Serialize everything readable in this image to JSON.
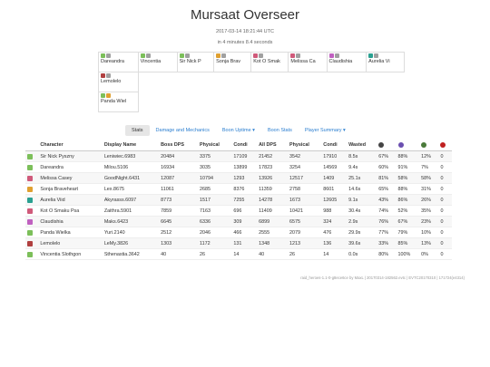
{
  "title": "Mursaat Overseer",
  "timestamp": "2017-03-14 18:21:44 UTC",
  "duration": "in 4 minutes 8.4 seconds",
  "squad": [
    [
      {
        "name": "Dareandra",
        "c1": "#7cbf5a",
        "c2": "#a0a0a0"
      },
      {
        "name": "Vincentia",
        "c1": "#7cbf5a",
        "c2": "#a0a0a0"
      },
      {
        "name": "Sir Nick P",
        "c1": "#7cbf5a",
        "c2": "#a0a0a0"
      },
      {
        "name": "Sonja Brav",
        "c1": "#e0a030",
        "c2": "#a0a0a0"
      },
      {
        "name": "Kot O Smak",
        "c1": "#d05a7a",
        "c2": "#a0a0a0"
      },
      {
        "name": "Melissa Ca",
        "c1": "#d05a7a",
        "c2": "#a0a0a0"
      },
      {
        "name": "Claudishia",
        "c1": "#c060c0",
        "c2": "#a0a0a0"
      },
      {
        "name": "Aurelia Vi",
        "c1": "#2aa090",
        "c2": "#a0a0a0"
      }
    ],
    [
      {
        "name": "Lemolelo",
        "c1": "#b04040",
        "c2": "#a0a0a0"
      }
    ],
    [
      {
        "name": "Panda Wiel",
        "c1": "#7cbf5a",
        "c2": "#e0a030"
      }
    ]
  ],
  "tabs": [
    "Stats",
    "Damage and Mechanics",
    "Boon Uptime ▾",
    "Boon Stats",
    "Player Summary ▾"
  ],
  "columns": [
    "Character",
    "Display Name",
    "Boss DPS",
    "Physical",
    "Condi",
    "All DPS",
    "Physical",
    "Condi",
    "Wasted"
  ],
  "col_icons": [
    {
      "name": "clock-icon",
      "color": "#444"
    },
    {
      "name": "swap-icon",
      "color": "#6a4fb0"
    },
    {
      "name": "down-icon",
      "color": "#4a7a3a"
    },
    {
      "name": "heart-icon",
      "color": "#c02020"
    }
  ],
  "rows": [
    {
      "color": "#7cbf5a",
      "cells": [
        "Sir Nick Pyszny",
        "Leniwiec.6983",
        "20484",
        "3375",
        "17109",
        "21452",
        "3542",
        "17910",
        "8.5s",
        "67%",
        "88%",
        "12%",
        "0"
      ]
    },
    {
      "color": "#7cbf5a",
      "cells": [
        "Dareandra",
        "Milou.5106",
        "16934",
        "3035",
        "13899",
        "17823",
        "3254",
        "14569",
        "9.4s",
        "60%",
        "91%",
        "7%",
        "0"
      ]
    },
    {
      "color": "#d05a7a",
      "cells": [
        "Melissa Casey",
        "GoodNight.6431",
        "12087",
        "10794",
        "1293",
        "13926",
        "12517",
        "1409",
        "25.1s",
        "81%",
        "58%",
        "58%",
        "0"
      ]
    },
    {
      "color": "#e0a030",
      "cells": [
        "Sonja Braveheart",
        "Lex.8675",
        "11061",
        "2685",
        "8376",
        "11359",
        "2758",
        "8601",
        "14.6s",
        "65%",
        "88%",
        "31%",
        "0"
      ]
    },
    {
      "color": "#2aa090",
      "cells": [
        "Aurelia Viid",
        "Akyrasss.6097",
        "8773",
        "1517",
        "7255",
        "14278",
        "1673",
        "12605",
        "9.1s",
        "43%",
        "86%",
        "26%",
        "0"
      ]
    },
    {
      "color": "#d05a7a",
      "cells": [
        "Kot O Smaku Psa",
        "Zaithra.5901",
        "7859",
        "7163",
        "696",
        "11409",
        "10421",
        "988",
        "30.4s",
        "74%",
        "52%",
        "35%",
        "0"
      ]
    },
    {
      "color": "#c060c0",
      "cells": [
        "Claudishia",
        "Maks.6423",
        "6645",
        "6336",
        "309",
        "6899",
        "6575",
        "324",
        "2.9s",
        "76%",
        "67%",
        "23%",
        "0"
      ]
    },
    {
      "color": "#7cbf5a",
      "cells": [
        "Panda Wielka",
        "Yuri.2140",
        "2512",
        "2046",
        "466",
        "2555",
        "2079",
        "476",
        "29.9s",
        "77%",
        "79%",
        "10%",
        "0"
      ]
    },
    {
      "color": "#b04040",
      "cells": [
        "Lemolelo",
        "LeMy.3826",
        "1303",
        "1172",
        "131",
        "1348",
        "1213",
        "136",
        "39.6s",
        "33%",
        "85%",
        "13%",
        "0"
      ]
    },
    {
      "color": "#7cbf5a",
      "cells": [
        "Vincentia Slothgon",
        "Sthenastia.3642",
        "40",
        "26",
        "14",
        "40",
        "26",
        "14",
        "0.0s",
        "80%",
        "100%",
        "0%",
        "0"
      ]
    }
  ],
  "footer": "raid_heroes-1.1-0-g8ece6ce by MaxL | 20170314-182562.evtc | EVTC20170310 | 171724(e4314)"
}
